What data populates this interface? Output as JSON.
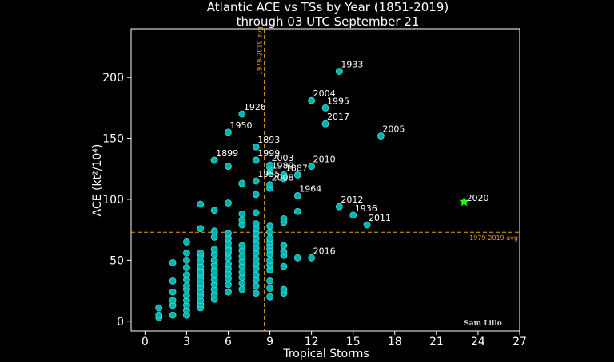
{
  "chart_data": {
    "type": "scatter",
    "title": "Atlantic ACE vs TSs by Year (1851-2019)",
    "subtitle": "through 03 UTC September 21",
    "xlabel": "Tropical Storms",
    "ylabel": "ACE (kt²/10⁴)",
    "xlim": [
      -1,
      27
    ],
    "ylim": [
      -8,
      240
    ],
    "xticks": [
      0,
      3,
      6,
      9,
      12,
      15,
      18,
      21,
      24,
      27
    ],
    "yticks": [
      0,
      50,
      100,
      150,
      200
    ],
    "grid": false,
    "colors": {
      "background": "#000000",
      "points": "#00b3b3",
      "points_edge": "#40e0d0",
      "highlight": "#22ff22",
      "avg_line": "#e8a020",
      "frame": "#ffffff"
    },
    "reference_lines": {
      "vertical": {
        "x": 8.6,
        "label": "1979-2019 avg"
      },
      "horizontal": {
        "y": 73,
        "label": "1979-2019 avg"
      }
    },
    "credit": "Sam Lillo",
    "series": [
      {
        "x": [
          1,
          1,
          1,
          2,
          2,
          2,
          2,
          2,
          2,
          3,
          3,
          3,
          3,
          3,
          3,
          3,
          3,
          3,
          3,
          3,
          3,
          3,
          4,
          4,
          4,
          4,
          4,
          4,
          4,
          4,
          4,
          4,
          4,
          4,
          4,
          4,
          4,
          4,
          4,
          5,
          5,
          5,
          5,
          5,
          5,
          5,
          5,
          5,
          5,
          5,
          5,
          5,
          5,
          6,
          6,
          6,
          6,
          6,
          6,
          6,
          6,
          6,
          6,
          6,
          6,
          6,
          6,
          7,
          7,
          7,
          7,
          7,
          7,
          7,
          7,
          7,
          7,
          7,
          7,
          7,
          8,
          8,
          8,
          8,
          8,
          8,
          8,
          8,
          8,
          8,
          8,
          8,
          8,
          8,
          8,
          8,
          9,
          9,
          9,
          9,
          9,
          9,
          9,
          9,
          9,
          9,
          9,
          9,
          9,
          10,
          10,
          10,
          10,
          10,
          10,
          10,
          10,
          11,
          11,
          5,
          6,
          7,
          8,
          9,
          9,
          10,
          10,
          11
        ],
        "y": [
          3,
          5,
          11,
          5,
          13,
          17,
          24,
          33,
          48,
          5,
          9,
          13,
          17,
          21,
          26,
          29,
          34,
          38,
          44,
          50,
          56,
          65,
          11,
          14,
          17,
          21,
          24,
          28,
          31,
          35,
          38,
          42,
          45,
          49,
          53,
          56,
          76,
          96,
          40,
          18,
          22,
          26,
          30,
          34,
          38,
          42,
          46,
          50,
          55,
          59,
          69,
          74,
          91,
          24,
          30,
          35,
          39,
          43,
          47,
          52,
          56,
          60,
          64,
          68,
          72,
          58,
          97,
          26,
          31,
          36,
          40,
          45,
          49,
          53,
          58,
          62,
          79,
          83,
          88,
          113,
          23,
          29,
          34,
          38,
          43,
          47,
          51,
          56,
          60,
          64,
          68,
          72,
          76,
          80,
          89,
          104,
          20,
          27,
          33,
          42,
          46,
          50,
          55,
          59,
          62,
          65,
          68,
          73,
          78,
          23,
          26,
          45,
          54,
          57,
          62,
          81,
          84,
          52,
          90,
          132,
          127,
          113,
          132,
          109,
          126,
          120,
          117,
          120
        ]
      }
    ],
    "annotated_points": [
      {
        "x": 14,
        "y": 205,
        "label": "1933"
      },
      {
        "x": 12,
        "y": 181,
        "label": "2004"
      },
      {
        "x": 13,
        "y": 175,
        "label": "1995"
      },
      {
        "x": 13,
        "y": 162,
        "label": "2017"
      },
      {
        "x": 17,
        "y": 152,
        "label": "2005"
      },
      {
        "x": 7,
        "y": 170,
        "label": "1926"
      },
      {
        "x": 6,
        "y": 155,
        "label": "1950"
      },
      {
        "x": 8,
        "y": 143,
        "label": "1893"
      },
      {
        "x": 5,
        "y": 132,
        "label": "1899"
      },
      {
        "x": 8,
        "y": 132,
        "label": "1999"
      },
      {
        "x": 9,
        "y": 128,
        "label": "2003"
      },
      {
        "x": 10,
        "y": 120,
        "label": "1887"
      },
      {
        "x": 12,
        "y": 127,
        "label": "2010"
      },
      {
        "x": 9,
        "y": 122,
        "label": "1989"
      },
      {
        "x": 8,
        "y": 115,
        "label": "1955"
      },
      {
        "x": 9,
        "y": 112,
        "label": "2008"
      },
      {
        "x": 11,
        "y": 103,
        "label": "1964"
      },
      {
        "x": 14,
        "y": 94,
        "label": "2012"
      },
      {
        "x": 15,
        "y": 87,
        "label": "1936"
      },
      {
        "x": 16,
        "y": 79,
        "label": "2011"
      },
      {
        "x": 12,
        "y": 52,
        "label": "2016"
      }
    ],
    "highlight_point": {
      "x": 23,
      "y": 98,
      "label": "2020",
      "marker": "star"
    }
  }
}
